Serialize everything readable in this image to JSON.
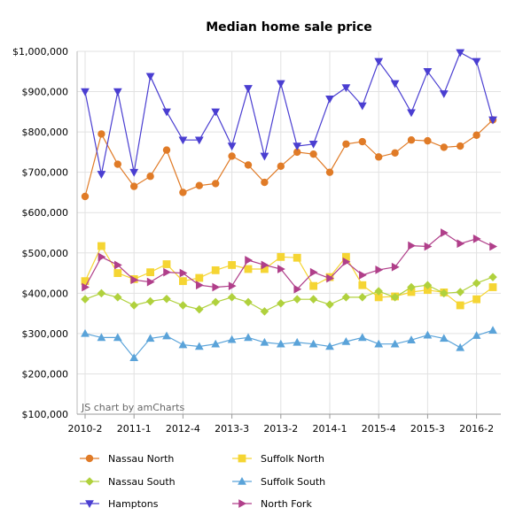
{
  "chart_data": {
    "type": "line",
    "title": "Median home sale price",
    "credit": "JS chart by amCharts",
    "xlabel": "",
    "ylabel": "",
    "ylim": [
      100000,
      1000000
    ],
    "yticks": [
      "$100,000",
      "$200,000",
      "$300,000",
      "$400,000",
      "$500,000",
      "$600,000",
      "$700,000",
      "$800,000",
      "$900,000",
      "$1,000,000"
    ],
    "ytick_values": [
      100000,
      200000,
      300000,
      400000,
      500000,
      600000,
      700000,
      800000,
      900000,
      1000000
    ],
    "grid": true,
    "legend_position": "bottom",
    "x_tick_labels": [
      {
        "label": "2010-2",
        "index": 0
      },
      {
        "label": "2011-1",
        "index": 3
      },
      {
        "label": "2012-4",
        "index": 6
      },
      {
        "label": "2013-3",
        "index": 9
      },
      {
        "label": "2013-2",
        "index": 12
      },
      {
        "label": "2014-1",
        "index": 15
      },
      {
        "label": "2015-4",
        "index": 18
      },
      {
        "label": "2015-3",
        "index": 21
      },
      {
        "label": "2016-2",
        "index": 24
      }
    ],
    "n_points": 26,
    "series": [
      {
        "name": "Nassau North",
        "color": "#e07b27",
        "marker": "circle",
        "values": [
          640000,
          795000,
          720000,
          665000,
          690000,
          755000,
          650000,
          667000,
          672000,
          740000,
          718000,
          675000,
          715000,
          750000,
          745000,
          700000,
          770000,
          776000,
          738000,
          748000,
          780000,
          778000,
          762000,
          765000,
          792000,
          830000
        ]
      },
      {
        "name": "Suffolk North",
        "color": "#f5d533",
        "marker": "square",
        "values": [
          430000,
          517000,
          450000,
          435000,
          452000,
          472000,
          430000,
          438000,
          457000,
          470000,
          460000,
          460000,
          490000,
          488000,
          418000,
          440000,
          490000,
          420000,
          390000,
          392000,
          403000,
          408000,
          402000,
          370000,
          385000,
          415000
        ]
      },
      {
        "name": "Nassau South",
        "color": "#b0d13d",
        "marker": "diamond",
        "values": [
          385000,
          400000,
          390000,
          370000,
          380000,
          386000,
          370000,
          360000,
          378000,
          390000,
          378000,
          355000,
          375000,
          385000,
          385000,
          372000,
          390000,
          390000,
          405000,
          390000,
          415000,
          420000,
          400000,
          403000,
          425000,
          440000
        ]
      },
      {
        "name": "Suffolk South",
        "color": "#5aa3d9",
        "marker": "triangle-up",
        "values": [
          300000,
          290000,
          290000,
          240000,
          288000,
          294000,
          272000,
          268000,
          274000,
          285000,
          290000,
          278000,
          274000,
          278000,
          274000,
          268000,
          280000,
          290000,
          274000,
          274000,
          284000,
          296000,
          288000,
          265000,
          295000,
          308000
        ]
      },
      {
        "name": "Hamptons",
        "color": "#4a3ed1",
        "marker": "triangle-down",
        "values": [
          900000,
          695000,
          900000,
          700000,
          938000,
          850000,
          780000,
          780000,
          850000,
          765000,
          908000,
          740000,
          920000,
          765000,
          770000,
          882000,
          910000,
          865000,
          975000,
          920000,
          848000,
          950000,
          895000,
          997000,
          975000,
          830000
        ]
      },
      {
        "name": "North Fork",
        "color": "#b03f8a",
        "marker": "triangle-right",
        "values": [
          415000,
          490000,
          470000,
          433000,
          428000,
          452000,
          450000,
          420000,
          415000,
          418000,
          482000,
          470000,
          460000,
          410000,
          452000,
          437000,
          478000,
          445000,
          458000,
          465000,
          518000,
          516000,
          550000,
          523000,
          535000,
          516000
        ]
      }
    ]
  }
}
